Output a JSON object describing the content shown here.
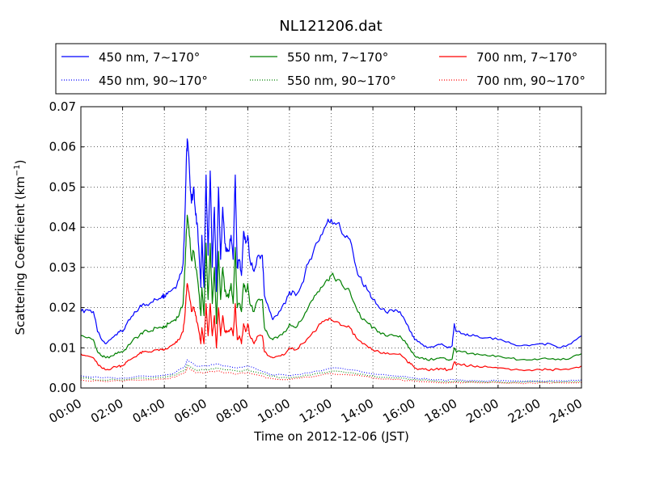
{
  "chart_data": {
    "type": "line",
    "title": "NL121206.dat",
    "xlabel": "Time on 2012-12-06 (JST)",
    "ylabel": "Scattering Coefficient (km",
    "ylabel_exp": "−1",
    "ylabel_close": ")",
    "x_unit": "hour",
    "xlim": [
      0,
      24
    ],
    "ylim": [
      0,
      0.07
    ],
    "grid": true,
    "legend_position": "top",
    "x_ticks": [
      0,
      2,
      4,
      6,
      8,
      10,
      12,
      14,
      16,
      18,
      20,
      22,
      24
    ],
    "x_tick_labels": [
      "00:00",
      "02:00",
      "04:00",
      "06:00",
      "08:00",
      "10:00",
      "12:00",
      "14:00",
      "16:00",
      "18:00",
      "20:00",
      "22:00",
      "24:00"
    ],
    "y_ticks": [
      0,
      0.01,
      0.02,
      0.03,
      0.04,
      0.05,
      0.06,
      0.07
    ],
    "y_tick_labels": [
      "0.00",
      "0.01",
      "0.02",
      "0.03",
      "0.04",
      "0.05",
      "0.06",
      "0.07"
    ],
    "series": [
      {
        "name": "450 nm, 7∼170°",
        "color": "#0000ff",
        "style": "solid",
        "x": [
          0,
          0.3,
          0.6,
          0.8,
          1.0,
          1.2,
          1.5,
          1.8,
          2.0,
          2.2,
          2.5,
          2.8,
          3.0,
          3.3,
          3.6,
          3.9,
          4.0,
          4.2,
          4.5,
          4.7,
          4.9,
          5.0,
          5.05,
          5.1,
          5.2,
          5.3,
          5.4,
          5.5,
          5.6,
          5.7,
          5.75,
          5.8,
          5.9,
          6.0,
          6.1,
          6.2,
          6.3,
          6.4,
          6.5,
          6.6,
          6.7,
          6.8,
          6.9,
          7.0,
          7.1,
          7.2,
          7.3,
          7.4,
          7.5,
          7.6,
          7.7,
          7.8,
          7.9,
          8.0,
          8.1,
          8.3,
          8.5,
          8.7,
          8.8,
          9.0,
          9.2,
          9.5,
          9.8,
          10.0,
          10.3,
          10.6,
          10.9,
          11.2,
          11.5,
          11.8,
          12.0,
          12.3,
          12.6,
          12.9,
          13.2,
          13.5,
          13.8,
          14.0,
          14.3,
          14.6,
          15.0,
          15.3,
          15.6,
          15.8,
          16.0,
          16.3,
          16.6,
          17.0,
          17.3,
          17.6,
          17.8,
          17.9,
          18.0,
          18.3,
          18.6,
          19.0,
          19.5,
          20.0,
          20.5,
          21.0,
          21.5,
          22.0,
          22.5,
          23.0,
          23.5,
          24.0
        ],
        "y": [
          0.019,
          0.0195,
          0.019,
          0.014,
          0.012,
          0.011,
          0.0125,
          0.014,
          0.014,
          0.016,
          0.018,
          0.02,
          0.021,
          0.021,
          0.022,
          0.023,
          0.023,
          0.024,
          0.025,
          0.027,
          0.031,
          0.045,
          0.055,
          0.062,
          0.055,
          0.046,
          0.05,
          0.043,
          0.04,
          0.03,
          0.025,
          0.038,
          0.025,
          0.053,
          0.033,
          0.054,
          0.03,
          0.045,
          0.024,
          0.05,
          0.032,
          0.045,
          0.036,
          0.034,
          0.034,
          0.038,
          0.032,
          0.053,
          0.03,
          0.032,
          0.028,
          0.039,
          0.036,
          0.038,
          0.032,
          0.029,
          0.033,
          0.033,
          0.023,
          0.02,
          0.017,
          0.019,
          0.021,
          0.024,
          0.023,
          0.026,
          0.031,
          0.035,
          0.038,
          0.041,
          0.042,
          0.041,
          0.038,
          0.037,
          0.03,
          0.026,
          0.024,
          0.022,
          0.02,
          0.019,
          0.019,
          0.019,
          0.016,
          0.014,
          0.012,
          0.011,
          0.01,
          0.0105,
          0.011,
          0.01,
          0.0105,
          0.016,
          0.014,
          0.0135,
          0.013,
          0.013,
          0.0125,
          0.012,
          0.0115,
          0.0105,
          0.0105,
          0.011,
          0.011,
          0.01,
          0.011,
          0.013
        ]
      },
      {
        "name": "550 nm, 7∼170°",
        "color": "#008000",
        "style": "solid",
        "x": [
          0,
          0.3,
          0.6,
          0.8,
          1.0,
          1.2,
          1.5,
          1.8,
          2.0,
          2.2,
          2.5,
          2.8,
          3.0,
          3.3,
          3.6,
          3.9,
          4.0,
          4.2,
          4.5,
          4.7,
          4.9,
          5.0,
          5.05,
          5.1,
          5.2,
          5.3,
          5.4,
          5.5,
          5.6,
          5.7,
          5.75,
          5.8,
          5.9,
          6.0,
          6.1,
          6.2,
          6.3,
          6.4,
          6.5,
          6.6,
          6.7,
          6.8,
          6.9,
          7.0,
          7.1,
          7.2,
          7.3,
          7.4,
          7.5,
          7.6,
          7.7,
          7.8,
          7.9,
          8.0,
          8.1,
          8.3,
          8.5,
          8.7,
          8.8,
          9.0,
          9.2,
          9.5,
          9.8,
          10.0,
          10.3,
          10.6,
          10.9,
          11.2,
          11.5,
          11.8,
          12.0,
          12.3,
          12.6,
          12.9,
          13.2,
          13.5,
          13.8,
          14.0,
          14.3,
          14.6,
          15.0,
          15.3,
          15.6,
          15.8,
          16.0,
          16.3,
          16.6,
          17.0,
          17.3,
          17.6,
          17.8,
          17.9,
          18.0,
          18.3,
          18.6,
          19.0,
          19.5,
          20.0,
          20.5,
          21.0,
          21.5,
          22.0,
          22.5,
          23.0,
          23.5,
          24.0
        ],
        "y": [
          0.013,
          0.0125,
          0.012,
          0.009,
          0.008,
          0.0075,
          0.008,
          0.009,
          0.009,
          0.01,
          0.012,
          0.013,
          0.014,
          0.014,
          0.015,
          0.015,
          0.015,
          0.016,
          0.017,
          0.018,
          0.021,
          0.031,
          0.038,
          0.043,
          0.038,
          0.032,
          0.034,
          0.03,
          0.027,
          0.021,
          0.018,
          0.025,
          0.018,
          0.036,
          0.022,
          0.036,
          0.021,
          0.03,
          0.016,
          0.034,
          0.022,
          0.03,
          0.024,
          0.023,
          0.023,
          0.026,
          0.021,
          0.035,
          0.02,
          0.021,
          0.019,
          0.026,
          0.024,
          0.026,
          0.021,
          0.019,
          0.022,
          0.022,
          0.015,
          0.013,
          0.012,
          0.013,
          0.014,
          0.016,
          0.015,
          0.017,
          0.02,
          0.023,
          0.025,
          0.027,
          0.028,
          0.027,
          0.025,
          0.024,
          0.02,
          0.017,
          0.016,
          0.015,
          0.014,
          0.013,
          0.013,
          0.013,
          0.011,
          0.0095,
          0.008,
          0.0075,
          0.007,
          0.0072,
          0.0075,
          0.007,
          0.0072,
          0.01,
          0.009,
          0.009,
          0.0085,
          0.0085,
          0.008,
          0.008,
          0.0075,
          0.007,
          0.007,
          0.0072,
          0.0072,
          0.007,
          0.0075,
          0.0085
        ]
      },
      {
        "name": "700 nm, 7∼170°",
        "color": "#ff0000",
        "style": "solid",
        "x": [
          0,
          0.3,
          0.6,
          0.8,
          1.0,
          1.2,
          1.5,
          1.8,
          2.0,
          2.2,
          2.5,
          2.8,
          3.0,
          3.3,
          3.6,
          3.9,
          4.0,
          4.2,
          4.5,
          4.7,
          4.9,
          5.0,
          5.05,
          5.1,
          5.2,
          5.3,
          5.4,
          5.5,
          5.6,
          5.7,
          5.75,
          5.8,
          5.9,
          6.0,
          6.1,
          6.2,
          6.3,
          6.4,
          6.5,
          6.6,
          6.7,
          6.8,
          6.9,
          7.0,
          7.1,
          7.2,
          7.3,
          7.4,
          7.5,
          7.6,
          7.7,
          7.8,
          7.9,
          8.0,
          8.1,
          8.3,
          8.5,
          8.7,
          8.8,
          9.0,
          9.2,
          9.5,
          9.8,
          10.0,
          10.3,
          10.6,
          10.9,
          11.2,
          11.5,
          11.8,
          12.0,
          12.3,
          12.6,
          12.9,
          13.2,
          13.5,
          13.8,
          14.0,
          14.3,
          14.6,
          15.0,
          15.3,
          15.6,
          15.8,
          16.0,
          16.3,
          16.6,
          17.0,
          17.3,
          17.6,
          17.8,
          17.9,
          18.0,
          18.3,
          18.6,
          19.0,
          19.5,
          20.0,
          20.5,
          21.0,
          21.5,
          22.0,
          22.5,
          23.0,
          23.5,
          24.0
        ],
        "y": [
          0.0085,
          0.008,
          0.0075,
          0.006,
          0.005,
          0.0045,
          0.005,
          0.0055,
          0.0055,
          0.0065,
          0.0075,
          0.0085,
          0.009,
          0.009,
          0.0095,
          0.0095,
          0.0095,
          0.01,
          0.011,
          0.012,
          0.014,
          0.019,
          0.023,
          0.026,
          0.023,
          0.019,
          0.02,
          0.018,
          0.016,
          0.013,
          0.011,
          0.015,
          0.011,
          0.021,
          0.013,
          0.021,
          0.013,
          0.018,
          0.01,
          0.02,
          0.013,
          0.018,
          0.014,
          0.014,
          0.014,
          0.015,
          0.013,
          0.021,
          0.012,
          0.013,
          0.011,
          0.016,
          0.014,
          0.016,
          0.013,
          0.011,
          0.013,
          0.013,
          0.009,
          0.008,
          0.0075,
          0.008,
          0.0085,
          0.01,
          0.0095,
          0.011,
          0.0125,
          0.014,
          0.016,
          0.017,
          0.017,
          0.0165,
          0.0155,
          0.015,
          0.0125,
          0.011,
          0.01,
          0.0095,
          0.009,
          0.0085,
          0.0085,
          0.0085,
          0.007,
          0.006,
          0.005,
          0.0047,
          0.0045,
          0.0047,
          0.0048,
          0.0045,
          0.0047,
          0.0065,
          0.0058,
          0.0058,
          0.0055,
          0.0055,
          0.0052,
          0.005,
          0.0048,
          0.0045,
          0.0045,
          0.0046,
          0.0046,
          0.0045,
          0.0048,
          0.0055
        ]
      },
      {
        "name": "450 nm, 90∼170°",
        "color": "#0000ff",
        "style": "dotted",
        "x": [
          0,
          1,
          2,
          3,
          4,
          4.5,
          5.0,
          5.1,
          5.5,
          6,
          6.5,
          7,
          7.5,
          8,
          8.5,
          9,
          10,
          11,
          12,
          13,
          14,
          15,
          16,
          17,
          18,
          19,
          20,
          21,
          22,
          23,
          24
        ],
        "y": [
          0.003,
          0.0025,
          0.0025,
          0.003,
          0.0032,
          0.0038,
          0.0055,
          0.007,
          0.0055,
          0.0055,
          0.006,
          0.0055,
          0.005,
          0.0055,
          0.0045,
          0.0035,
          0.003,
          0.0038,
          0.005,
          0.0045,
          0.0035,
          0.003,
          0.0025,
          0.002,
          0.002,
          0.0018,
          0.0018,
          0.0017,
          0.0018,
          0.0018,
          0.002
        ]
      },
      {
        "name": "550 nm, 90∼170°",
        "color": "#008000",
        "style": "dotted",
        "x": [
          0,
          1,
          2,
          3,
          4,
          4.5,
          5.0,
          5.1,
          5.5,
          6,
          6.5,
          7,
          7.5,
          8,
          8.5,
          9,
          10,
          11,
          12,
          13,
          14,
          15,
          16,
          17,
          18,
          19,
          20,
          21,
          22,
          23,
          24
        ],
        "y": [
          0.0025,
          0.002,
          0.002,
          0.0025,
          0.0027,
          0.0032,
          0.0045,
          0.0058,
          0.0045,
          0.0045,
          0.005,
          0.0045,
          0.0042,
          0.0045,
          0.0038,
          0.003,
          0.0025,
          0.0032,
          0.0042,
          0.0038,
          0.003,
          0.0025,
          0.0021,
          0.0017,
          0.0017,
          0.0015,
          0.0015,
          0.0014,
          0.0015,
          0.0015,
          0.0017
        ]
      },
      {
        "name": "700 nm, 90∼170°",
        "color": "#ff0000",
        "style": "dotted",
        "x": [
          0,
          1,
          2,
          3,
          4,
          4.5,
          5.0,
          5.1,
          5.5,
          6,
          6.5,
          7,
          7.5,
          8,
          8.5,
          9,
          10,
          11,
          12,
          13,
          14,
          15,
          16,
          17,
          18,
          19,
          20,
          21,
          22,
          23,
          24
        ],
        "y": [
          0.002,
          0.0017,
          0.0017,
          0.002,
          0.0022,
          0.0027,
          0.0038,
          0.005,
          0.0038,
          0.0038,
          0.0042,
          0.0038,
          0.0035,
          0.0038,
          0.0032,
          0.0025,
          0.0021,
          0.0027,
          0.0036,
          0.0032,
          0.0025,
          0.0021,
          0.0018,
          0.0014,
          0.0014,
          0.0013,
          0.0013,
          0.0012,
          0.0013,
          0.0013,
          0.0014
        ]
      }
    ]
  }
}
